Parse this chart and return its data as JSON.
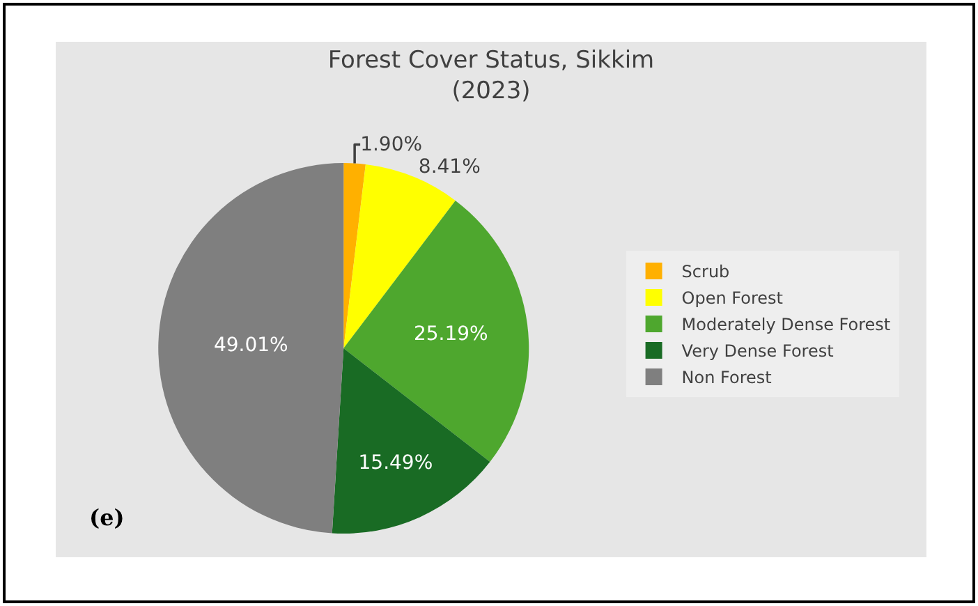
{
  "chart_data": {
    "type": "pie",
    "title": "Forest Cover Status, Sikkim\n(2023)",
    "categories": [
      "Scrub",
      "Open Forest",
      "Moderately Dense Forest",
      "Very Dense Forest",
      "Non Forest"
    ],
    "values": [
      1.9,
      8.41,
      25.19,
      15.49,
      49.01
    ],
    "colors": [
      "#ffb000",
      "#ffff00",
      "#4ea72e",
      "#196b24",
      "#7f7f7f"
    ],
    "value_labels": [
      "1.90%",
      "8.41%",
      "25.19%",
      "15.49%",
      "49.01%"
    ],
    "legend": "right",
    "annotations": [
      "(e)"
    ]
  }
}
